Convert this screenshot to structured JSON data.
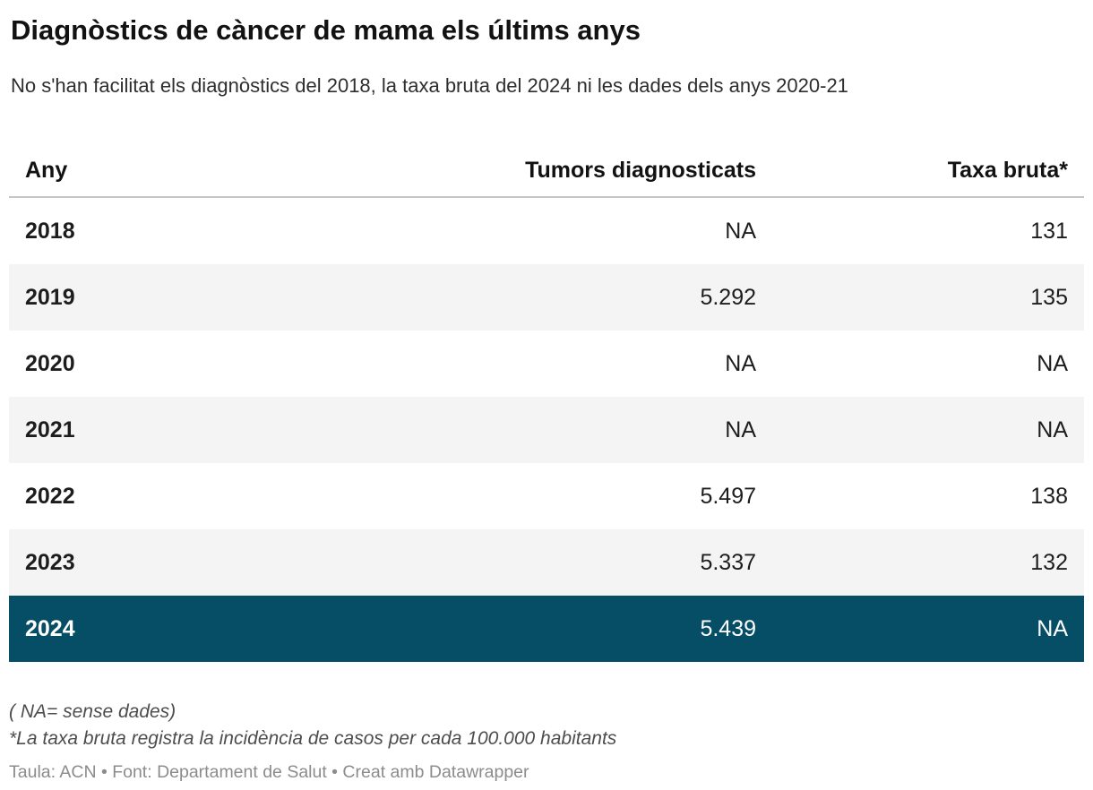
{
  "header": {
    "title": "Diagnòstics de càncer de mama els últims anys",
    "subtitle": "No s'han facilitat els diagnòstics del 2018, la taxa bruta del 2024 ni les dades dels anys 2020-21"
  },
  "table": {
    "columns": [
      "Any",
      "Tumors diagnosticats",
      "Taxa bruta*"
    ],
    "rows": [
      {
        "any": "2018",
        "tumors": "NA",
        "taxa": "131",
        "highlight": false
      },
      {
        "any": "2019",
        "tumors": "5.292",
        "taxa": "135",
        "highlight": false
      },
      {
        "any": "2020",
        "tumors": "NA",
        "taxa": "NA",
        "highlight": false
      },
      {
        "any": "2021",
        "tumors": "NA",
        "taxa": "NA",
        "highlight": false
      },
      {
        "any": "2022",
        "tumors": "5.497",
        "taxa": "138",
        "highlight": false
      },
      {
        "any": "2023",
        "tumors": "5.337",
        "taxa": "132",
        "highlight": false
      },
      {
        "any": "2024",
        "tumors": "5.439",
        "taxa": "NA",
        "highlight": true
      }
    ]
  },
  "footer": {
    "note1": "( NA= sense dades)",
    "note2": "*La taxa bruta registra la incidència de casos per cada 100.000 habitants",
    "attribution": "Taula: ACN • Font: Departament de Salut • Creat amb Datawrapper"
  },
  "colors": {
    "highlight_row_bg": "#064e66",
    "highlight_row_text": "#ffffff",
    "alt_row_bg": "#f4f4f4",
    "header_border": "#c6c6c6"
  },
  "chart_data": {
    "type": "table",
    "title": "Diagnòstics de càncer de mama els últims anys",
    "subtitle": "No s'han facilitat els diagnòstics del 2018, la taxa bruta del 2024 ni les dades dels anys 2020-21",
    "columns": [
      "Any",
      "Tumors diagnosticats",
      "Taxa bruta*"
    ],
    "rows": [
      [
        "2018",
        "NA",
        "131"
      ],
      [
        "2019",
        "5.292",
        "135"
      ],
      [
        "2020",
        "NA",
        "NA"
      ],
      [
        "2021",
        "NA",
        "NA"
      ],
      [
        "2022",
        "5.497",
        "138"
      ],
      [
        "2023",
        "5.337",
        "132"
      ],
      [
        "2024",
        "5.439",
        "NA"
      ]
    ],
    "highlighted_row": "2024",
    "row_striping": true,
    "notes": [
      "( NA= sense dades)",
      "*La taxa bruta registra la incidència de casos per cada 100.000 habitants"
    ],
    "attribution": "Taula: ACN • Font: Departament de Salut • Creat amb Datawrapper"
  }
}
